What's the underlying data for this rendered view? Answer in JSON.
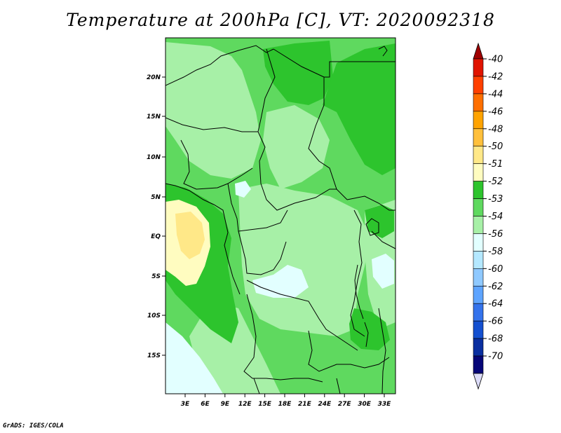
{
  "title": "Temperature at 200hPa [C], VT: 2020092318",
  "credit": "GrADS: IGES/COLA",
  "map": {
    "lat_ticks": [
      "20N",
      "15N",
      "10N",
      "5N",
      "EQ",
      "5S",
      "10S",
      "15S"
    ],
    "lon_ticks": [
      "3E",
      "6E",
      "9E",
      "12E",
      "15E",
      "18E",
      "21E",
      "24E",
      "27E",
      "30E",
      "33E"
    ]
  },
  "legend": {
    "levels": [
      "-40",
      "-42",
      "-44",
      "-46",
      "-48",
      "-50",
      "-51",
      "-52",
      "-53",
      "-54",
      "-56",
      "-58",
      "-60",
      "-62",
      "-64",
      "-66",
      "-68",
      "-70"
    ],
    "colors": [
      "#a00000",
      "#e01400",
      "#ff4000",
      "#ff6f00",
      "#ffa300",
      "#ffc03c",
      "#ffe888",
      "#fffcc0",
      "#2dc42d",
      "#5fd95f",
      "#a7f0a7",
      "#e2ffff",
      "#b4e8ff",
      "#8fc9ff",
      "#5ea4ff",
      "#3473ec",
      "#1450d0",
      "#0a2fa0",
      "#060678",
      "#dcdcf8"
    ]
  }
}
